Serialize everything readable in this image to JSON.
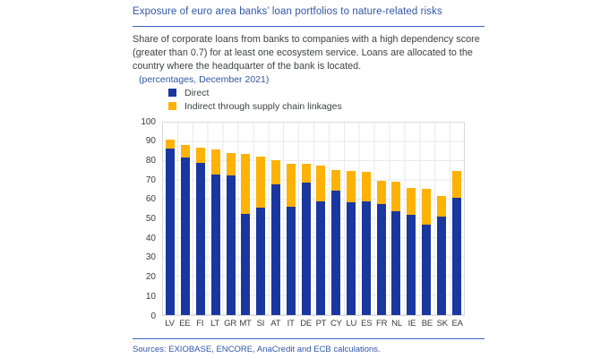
{
  "header": {
    "title": "Exposure of euro area banks’ loan portfolios to nature-related risks",
    "description_lines": [
      "Share of corporate loans from banks to companies with a high dependency score",
      "(greater than 0.7) for at least one ecosystem service. Loans are allocated to the",
      "country where the headquarter of the bank is located."
    ]
  },
  "chart": {
    "caption": "(percentages, December 2021)"
  },
  "chart_data": {
    "type": "bar",
    "stacked": true,
    "title": "Exposure of euro area banks’ loan portfolios to nature-related risks",
    "xlabel": "",
    "ylabel": "percentages",
    "ylim": [
      0,
      100
    ],
    "ytick_step": 10,
    "grid": true,
    "legend_position": "top-left",
    "categories": [
      "LV",
      "EE",
      "FI",
      "LT",
      "GR",
      "MT",
      "SI",
      "AT",
      "IT",
      "DE",
      "PT",
      "CY",
      "LU",
      "ES",
      "FR",
      "NL",
      "IE",
      "BE",
      "SK",
      "EA"
    ],
    "series": [
      {
        "name": "Direct",
        "color": "#1a379f",
        "values": [
          86.5,
          82,
          79,
          73,
          72.5,
          52.5,
          56,
          68,
          56.5,
          69,
          59,
          64.5,
          58.5,
          59,
          57.5,
          54,
          52,
          47,
          51,
          61
        ]
      },
      {
        "name": "Indirect through supply chain linkages",
        "color": "#feb205",
        "values": [
          4.5,
          6.5,
          8,
          13,
          11.5,
          31,
          26.5,
          12.5,
          22,
          9.5,
          18.5,
          11,
          16.5,
          15.5,
          12.5,
          15.5,
          14,
          18.5,
          11,
          14
        ]
      }
    ]
  },
  "footer": {
    "sources": "Sources: EXIOBASE, ENCORE, AnaCredit and ECB calculations."
  },
  "colors": {
    "accent_text": "#3156a6",
    "accent_line": "#3d63bf",
    "body_text": "#3f4041",
    "bar_direct": "#1a379f",
    "bar_indirect": "#feb205",
    "grid": "#eaeaea",
    "plot_border": "#d9d9d9"
  }
}
